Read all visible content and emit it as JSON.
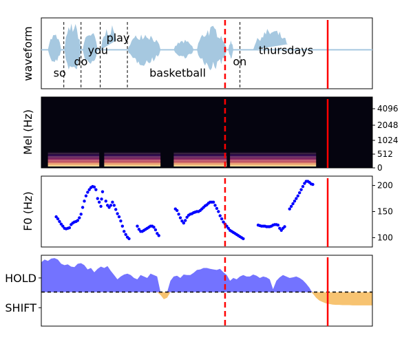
{
  "chart_data": [
    {
      "type": "line",
      "panel": "waveform",
      "ylabel": "waveform",
      "xlim": [
        0,
        10.0
      ],
      "grid": false,
      "wave_color": "#a6c8e0",
      "words": [
        {
          "text": "so",
          "x": 0.2,
          "y": -0.72
        },
        {
          "text": "do",
          "x": 0.82,
          "y": -0.36
        },
        {
          "text": "you",
          "x": 1.24,
          "y": 0.0
        },
        {
          "text": "play",
          "x": 1.8,
          "y": 0.38
        },
        {
          "text": "basketball",
          "x": 3.1,
          "y": -0.72
        },
        {
          "text": "on",
          "x": 5.62,
          "y": -0.36
        },
        {
          "text": "thursdays",
          "x": 6.4,
          "y": 0.0
        }
      ],
      "word_boundaries": [
        0.68,
        1.2,
        1.78,
        2.6,
        6.0
      ],
      "segments": [
        {
          "start": 0.2,
          "end": 0.6,
          "amp": 0.5
        },
        {
          "start": 0.7,
          "end": 1.2,
          "amp": 0.85
        },
        {
          "start": 1.25,
          "end": 1.7,
          "amp": 0.6
        },
        {
          "start": 1.8,
          "end": 2.35,
          "amp": 0.75
        },
        {
          "start": 2.6,
          "end": 3.6,
          "amp": 0.55
        },
        {
          "start": 4.0,
          "end": 4.6,
          "amp": 0.3
        },
        {
          "start": 4.7,
          "end": 5.6,
          "amp": 0.72
        },
        {
          "start": 5.65,
          "end": 5.8,
          "amp": 0.3
        },
        {
          "start": 6.4,
          "end": 7.5,
          "amp": 0.65
        }
      ]
    },
    {
      "type": "heatmap",
      "panel": "mel-spectrogram",
      "ylabel": "Mel (Hz)",
      "yticks": [
        "0",
        "512",
        "1024",
        "2048",
        "4096"
      ],
      "xlim": [
        0,
        10.0
      ],
      "voiced": [
        {
          "start": 0.2,
          "end": 1.75
        },
        {
          "start": 1.9,
          "end": 3.6
        },
        {
          "start": 4.0,
          "end": 5.6
        },
        {
          "start": 5.7,
          "end": 8.3
        }
      ]
    },
    {
      "type": "scatter",
      "panel": "f0",
      "ylabel": "F0 (Hz)",
      "yticks": [
        100,
        150,
        200
      ],
      "ylim": [
        90,
        210
      ],
      "xlim": [
        0,
        10.0
      ],
      "marker_color": "#0000ff",
      "points": [
        [
          0.45,
          140
        ],
        [
          0.5,
          136
        ],
        [
          0.55,
          131
        ],
        [
          0.6,
          126
        ],
        [
          0.65,
          122
        ],
        [
          0.7,
          118
        ],
        [
          0.75,
          117
        ],
        [
          0.8,
          118
        ],
        [
          0.85,
          119
        ],
        [
          0.9,
          125
        ],
        [
          0.95,
          128
        ],
        [
          1.0,
          130
        ],
        [
          1.05,
          131
        ],
        [
          1.1,
          133
        ],
        [
          1.15,
          138
        ],
        [
          1.2,
          145
        ],
        [
          1.25,
          158
        ],
        [
          1.3,
          170
        ],
        [
          1.35,
          180
        ],
        [
          1.4,
          187
        ],
        [
          1.45,
          192
        ],
        [
          1.5,
          196
        ],
        [
          1.55,
          198
        ],
        [
          1.6,
          197
        ],
        [
          1.65,
          192
        ],
        [
          1.7,
          175
        ],
        [
          1.75,
          168
        ],
        [
          1.8,
          160
        ],
        [
          1.82,
          174
        ],
        [
          1.85,
          188
        ],
        [
          1.95,
          170
        ],
        [
          2.0,
          162
        ],
        [
          2.05,
          158
        ],
        [
          2.1,
          162
        ],
        [
          2.15,
          168
        ],
        [
          2.2,
          162
        ],
        [
          2.25,
          154
        ],
        [
          2.3,
          146
        ],
        [
          2.35,
          140
        ],
        [
          2.4,
          132
        ],
        [
          2.45,
          122
        ],
        [
          2.5,
          112
        ],
        [
          2.55,
          106
        ],
        [
          2.6,
          101
        ],
        [
          2.65,
          98
        ],
        [
          2.9,
          122
        ],
        [
          2.95,
          116
        ],
        [
          3.0,
          112
        ],
        [
          3.05,
          112
        ],
        [
          3.1,
          114
        ],
        [
          3.15,
          116
        ],
        [
          3.2,
          118
        ],
        [
          3.25,
          120
        ],
        [
          3.3,
          122
        ],
        [
          3.35,
          122
        ],
        [
          3.4,
          120
        ],
        [
          3.45,
          115
        ],
        [
          3.5,
          108
        ],
        [
          3.55,
          104
        ],
        [
          4.05,
          155
        ],
        [
          4.1,
          152
        ],
        [
          4.15,
          145
        ],
        [
          4.2,
          138
        ],
        [
          4.25,
          132
        ],
        [
          4.3,
          128
        ],
        [
          4.35,
          133
        ],
        [
          4.4,
          139
        ],
        [
          4.45,
          143
        ],
        [
          4.5,
          145
        ],
        [
          4.55,
          146
        ],
        [
          4.6,
          148
        ],
        [
          4.65,
          149
        ],
        [
          4.7,
          150
        ],
        [
          4.75,
          150
        ],
        [
          4.8,
          152
        ],
        [
          4.85,
          155
        ],
        [
          4.9,
          158
        ],
        [
          4.95,
          161
        ],
        [
          5.0,
          163
        ],
        [
          5.05,
          166
        ],
        [
          5.1,
          168
        ],
        [
          5.15,
          168
        ],
        [
          5.2,
          168
        ],
        [
          5.25,
          162
        ],
        [
          5.3,
          156
        ],
        [
          5.35,
          150
        ],
        [
          5.4,
          142
        ],
        [
          5.45,
          136
        ],
        [
          5.5,
          130
        ],
        [
          5.55,
          126
        ],
        [
          5.6,
          122
        ],
        [
          5.65,
          118
        ],
        [
          5.7,
          114
        ],
        [
          5.75,
          112
        ],
        [
          5.8,
          110
        ],
        [
          5.85,
          108
        ],
        [
          5.9,
          106
        ],
        [
          5.95,
          104
        ],
        [
          6.0,
          102
        ],
        [
          6.05,
          100
        ],
        [
          6.1,
          98
        ],
        [
          6.55,
          124
        ],
        [
          6.6,
          123
        ],
        [
          6.65,
          122
        ],
        [
          6.7,
          122
        ],
        [
          6.75,
          122
        ],
        [
          6.8,
          121
        ],
        [
          6.85,
          121
        ],
        [
          6.9,
          121
        ],
        [
          6.95,
          122
        ],
        [
          7.0,
          124
        ],
        [
          7.05,
          125
        ],
        [
          7.1,
          125
        ],
        [
          7.15,
          124
        ],
        [
          7.2,
          118
        ],
        [
          7.25,
          114
        ],
        [
          7.3,
          118
        ],
        [
          7.35,
          121
        ],
        [
          7.5,
          155
        ],
        [
          7.55,
          160
        ],
        [
          7.6,
          165
        ],
        [
          7.65,
          170
        ],
        [
          7.7,
          175
        ],
        [
          7.75,
          180
        ],
        [
          7.8,
          186
        ],
        [
          7.85,
          192
        ],
        [
          7.9,
          198
        ],
        [
          7.95,
          204
        ],
        [
          8.0,
          208
        ],
        [
          8.05,
          208
        ],
        [
          8.1,
          206
        ],
        [
          8.15,
          203
        ],
        [
          8.2,
          202
        ]
      ]
    },
    {
      "type": "area",
      "panel": "turn-taking",
      "yticks": [
        "HOLD",
        "SHIFT"
      ],
      "ylim": [
        -1.2,
        1.3
      ],
      "xlim": [
        0,
        10.0
      ],
      "hold_color": "#6b6bff",
      "shift_color": "#f7c069",
      "x": [
        0.0,
        0.1,
        0.2,
        0.3,
        0.4,
        0.5,
        0.6,
        0.7,
        0.8,
        0.9,
        1.0,
        1.1,
        1.2,
        1.3,
        1.4,
        1.5,
        1.6,
        1.7,
        1.8,
        1.9,
        2.0,
        2.1,
        2.2,
        2.3,
        2.4,
        2.5,
        2.6,
        2.7,
        2.8,
        2.9,
        3.0,
        3.1,
        3.2,
        3.3,
        3.4,
        3.5,
        3.6,
        3.7,
        3.8,
        3.9,
        4.0,
        4.1,
        4.2,
        4.3,
        4.4,
        4.5,
        4.6,
        4.7,
        4.8,
        4.9,
        5.0,
        5.1,
        5.2,
        5.3,
        5.4,
        5.5,
        5.6,
        5.7,
        5.8,
        5.9,
        6.0,
        6.1,
        6.2,
        6.3,
        6.4,
        6.5,
        6.6,
        6.7,
        6.8,
        6.9,
        7.0,
        7.1,
        7.2,
        7.3,
        7.4,
        7.5,
        7.6,
        7.7,
        7.8,
        7.9,
        8.0,
        8.1,
        8.15,
        8.2,
        8.3,
        8.4,
        8.5,
        8.6,
        8.7,
        8.8,
        8.9,
        9.0,
        9.1,
        9.2,
        9.3,
        9.4,
        9.5,
        9.6,
        9.7,
        9.8,
        9.9,
        10.0
      ],
      "values": [
        1.05,
        1.15,
        1.1,
        1.18,
        1.2,
        1.15,
        1.0,
        0.95,
        0.98,
        0.9,
        0.88,
        1.0,
        1.02,
        0.95,
        0.8,
        0.85,
        0.7,
        0.82,
        0.9,
        0.85,
        0.92,
        0.75,
        0.6,
        0.45,
        0.55,
        0.62,
        0.65,
        0.6,
        0.5,
        0.45,
        0.6,
        0.55,
        0.5,
        0.65,
        0.6,
        0.55,
        -0.1,
        -0.25,
        -0.2,
        0.4,
        0.55,
        0.58,
        0.5,
        0.62,
        0.6,
        0.6,
        0.68,
        0.78,
        0.8,
        0.85,
        0.85,
        0.82,
        0.8,
        0.78,
        0.82,
        0.7,
        0.6,
        0.4,
        0.5,
        0.45,
        0.55,
        0.6,
        0.55,
        0.55,
        0.62,
        0.58,
        0.5,
        0.55,
        0.52,
        0.45,
        0.1,
        0.4,
        0.52,
        0.6,
        0.55,
        0.5,
        0.52,
        0.55,
        0.5,
        0.42,
        0.3,
        0.15,
        0.05,
        -0.05,
        -0.2,
        -0.3,
        -0.35,
        -0.4,
        -0.42,
        -0.44,
        -0.45,
        -0.45,
        -0.46,
        -0.46,
        -0.46,
        -0.47,
        -0.47,
        -0.47,
        -0.47,
        -0.47,
        -0.47,
        -0.47
      ],
      "threshold": 0.0
    }
  ],
  "markers": {
    "dashed_x": 5.55,
    "solid_x": 8.65,
    "color": "#ff0000"
  }
}
